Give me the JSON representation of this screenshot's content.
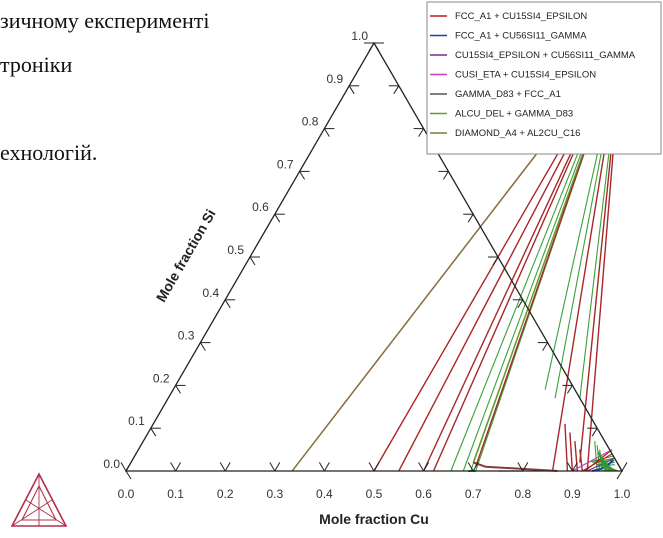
{
  "document": {
    "lines": [
      "зичному експерименті",
      "троніки",
      "ехнологій."
    ]
  },
  "chart_data": {
    "type": "ternary_phase_diagram",
    "title": "",
    "xlabel": "Mole fraction Cu",
    "ylabel": "Mole fraction Si",
    "x_ticks": [
      "0.0",
      "0.1",
      "0.2",
      "0.3",
      "0.4",
      "0.5",
      "0.6",
      "0.7",
      "0.8",
      "0.9",
      "1.0"
    ],
    "y_ticks": [
      "0.0",
      "0.1",
      "0.2",
      "0.3",
      "0.4",
      "0.5",
      "0.6",
      "0.7",
      "0.8",
      "0.9",
      "1.0"
    ],
    "xlim": [
      0,
      1
    ],
    "ylim": [
      0,
      1
    ],
    "legend_position": "top-right",
    "series": [
      {
        "name": "FCC_A1 + CU15SI4_EPSILON",
        "color": "#b22222",
        "tielines": [
          [
            [
              0.92,
              0.0
            ],
            [
              0.96,
              0.04
            ]
          ],
          [
            [
              0.925,
              0.0
            ],
            [
              0.955,
              0.05
            ]
          ]
        ]
      },
      {
        "name": "FCC_A1 + CU56SI11_GAMMA",
        "color": "#1f3fb3",
        "boundary": [
          [
            0.94,
            0.0
          ],
          [
            0.955,
            0.005
          ],
          [
            0.965,
            0.015
          ],
          [
            0.97,
            0.025
          ]
        ]
      },
      {
        "name": "CU15SI4_EPSILON + CU56SI11_GAMMA",
        "color": "#7a2a8a",
        "tielines": [
          [
            [
              0.93,
              0.0
            ],
            [
              0.97,
              0.03
            ]
          ]
        ]
      },
      {
        "name": "CUSI_ETA + CU15SI4_EPSILON",
        "color": "#c040c0",
        "tielines": [
          [
            [
              0.9,
              0.0
            ],
            [
              0.955,
              0.05
            ]
          ]
        ]
      },
      {
        "name": "GAMMA_D83 + FCC_A1",
        "color": "#555555",
        "tielines": [
          [
            [
              0.75,
              0.0
            ],
            [
              0.8,
              0.0
            ]
          ]
        ]
      },
      {
        "name": "ALCU_DEL + GAMMA_D83",
        "color": "#6a9a2a",
        "tielines": [
          [
            [
              0.69,
              0.02
            ],
            [
              0.5,
              1.0
            ]
          ]
        ]
      },
      {
        "name": "DIAMOND_A4 + AL2CU_C16",
        "color": "#7a7a3a",
        "tielines": [
          [
            [
              0.335,
              0.0
            ],
            [
              0.5,
              1.0
            ]
          ]
        ]
      }
    ],
    "red_tielines": [
      [
        [
          0.335,
          0.0
        ],
        [
          0.5,
          1.0
        ]
      ],
      [
        [
          0.5,
          0.0
        ],
        [
          0.5,
          1.0
        ]
      ],
      [
        [
          0.55,
          0.0
        ],
        [
          0.5,
          1.0
        ]
      ],
      [
        [
          0.6,
          0.0
        ],
        [
          0.5,
          1.0
        ]
      ],
      [
        [
          0.62,
          0.0
        ],
        [
          0.5,
          1.0
        ]
      ],
      [
        [
          0.7,
          0.01
        ],
        [
          0.5,
          1.0
        ]
      ],
      [
        [
          0.86,
          0.0
        ],
        [
          0.5,
          1.0
        ]
      ],
      [
        [
          0.905,
          0.02
        ],
        [
          0.5,
          1.0
        ]
      ],
      [
        [
          0.93,
          0.0
        ],
        [
          0.5,
          1.0
        ]
      ],
      [
        [
          0.89,
          0.05
        ],
        [
          0.92,
          0.0
        ]
      ],
      [
        [
          0.87,
          0.07
        ],
        [
          0.91,
          0.0
        ]
      ],
      [
        [
          0.85,
          0.09
        ],
        [
          0.9,
          0.0
        ]
      ],
      [
        [
          0.83,
          0.11
        ],
        [
          0.89,
          0.0
        ]
      ]
    ],
    "green_tielines": [
      [
        [
          0.655,
          0.0
        ],
        [
          0.5,
          1.0
        ]
      ],
      [
        [
          0.68,
          0.0
        ],
        [
          0.5,
          1.0
        ]
      ],
      [
        [
          0.695,
          0.0
        ],
        [
          0.5,
          1.0
        ]
      ],
      [
        [
          0.705,
          0.0
        ],
        [
          0.5,
          1.0
        ]
      ],
      [
        [
          0.75,
          0.19
        ],
        [
          0.5,
          1.0
        ]
      ],
      [
        [
          0.78,
          0.17
        ],
        [
          0.5,
          1.0
        ]
      ],
      [
        [
          0.83,
          0.17
        ],
        [
          0.5,
          1.0
        ]
      ],
      [
        [
          0.92,
          0.02
        ],
        [
          0.965,
          0.035
        ]
      ],
      [
        [
          0.93,
          0.02
        ],
        [
          0.97,
          0.03
        ]
      ],
      [
        [
          0.935,
          0.02
        ],
        [
          0.972,
          0.025
        ]
      ],
      [
        [
          0.94,
          0.015
        ],
        [
          0.975,
          0.02
        ]
      ],
      [
        [
          0.945,
          0.01
        ],
        [
          0.978,
          0.015
        ]
      ],
      [
        [
          0.93,
          0.05
        ],
        [
          0.96,
          0.0
        ]
      ],
      [
        [
          0.92,
          0.06
        ],
        [
          0.955,
          0.0
        ]
      ],
      [
        [
          0.91,
          0.07
        ],
        [
          0.95,
          0.0
        ]
      ]
    ],
    "region_boundaries": [
      {
        "color": "#8a3a3a",
        "points": [
          [
            0.69,
            0.02
          ],
          [
            0.72,
            0.01
          ],
          [
            0.87,
            0.0
          ]
        ]
      },
      {
        "color": "#2a8a2a",
        "points": [
          [
            0.69,
            0.0
          ],
          [
            0.705,
            0.0
          ]
        ]
      }
    ]
  }
}
